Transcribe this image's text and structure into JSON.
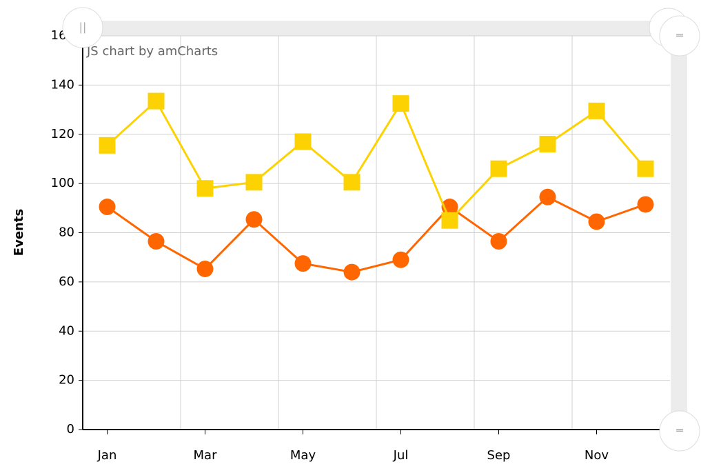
{
  "chart_data": {
    "type": "line",
    "credit": "JS chart by amCharts",
    "y_label": "Events",
    "categories": [
      "Jan",
      null,
      "Mar",
      null,
      "May",
      null,
      "Jul",
      null,
      "Sep",
      null,
      "Nov",
      null
    ],
    "series": [
      {
        "color": "#ff6600",
        "marker": "circle",
        "values": [
          90.5,
          76.5,
          65.3,
          85.4,
          67.5,
          64,
          69,
          90.5,
          76.5,
          94.5,
          84.5,
          91.5
        ]
      },
      {
        "color": "#fcd202",
        "marker": "square",
        "values": [
          115.5,
          133.5,
          98,
          100.5,
          117,
          100.5,
          132.5,
          85,
          106,
          116,
          129.5,
          106
        ]
      }
    ],
    "ylim": [
      0,
      160
    ],
    "yticks": [
      0,
      20,
      40,
      60,
      80,
      100,
      120,
      140,
      160
    ],
    "grid": true
  }
}
